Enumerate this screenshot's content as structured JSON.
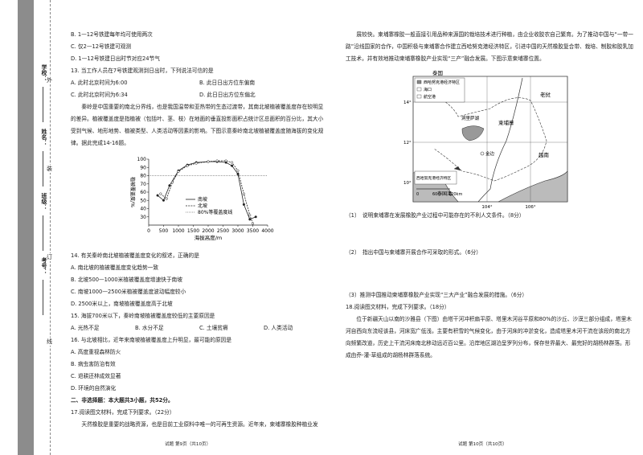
{
  "binding": {
    "fields": [
      "学校：",
      "姓名：",
      "班级：",
      "考号："
    ],
    "marks": [
      "外",
      "装",
      "订",
      "线"
    ]
  },
  "left_page": {
    "before_chart": [
      {
        "text": "B. 1—12号铁建每年均可使用两次"
      },
      {
        "text": "C. 仅2—12号铁建可观测"
      },
      {
        "text": "D. 1—12号铁建日出时节对应24节气"
      },
      {
        "text": "13. 当工作人员在7号铁建观测到日出时，下列说法可信的是"
      },
      {
        "options": [
          "A. 此时北京时间为6:00",
          "B. 此日日出方位东偏南"
        ]
      },
      {
        "options": [
          "C. 此时北京时间为6:34",
          "D. 此日日出方位东偏北"
        ]
      },
      {
        "para": "秦岭是中国重要的南北分界线，也是我国温带和亚热带的生态过渡带，其南北坡植被覆盖度存在较明显的差异。植被覆盖度是指植被（包括叶、茎、枝）在地面的垂直投影面积占统计区总面积的百分比，其大小受到气候、地形地势、植被类型、人类活动等因素的影响。下图示意秦岭南北坡植被覆盖度随海拔的变化规律。据此完成14-16题。"
      }
    ],
    "chart": {
      "type": "line",
      "x_label": "海拔高度/m",
      "y_label": "植被覆盖度/%",
      "xlim": [
        0,
        4000
      ],
      "xticks": [
        0,
        500,
        1000,
        1500,
        2000,
        2500,
        3000,
        3500,
        4000
      ],
      "ylim": [
        20,
        100
      ],
      "yticks": [
        30,
        40,
        50,
        60,
        70,
        80,
        90,
        100
      ],
      "series": [
        {
          "name": "南坡",
          "color": "#222",
          "style": "solid",
          "x": [
            300,
            500,
            700,
            1000,
            1300,
            1600,
            2000,
            2300,
            2600,
            2800,
            3000,
            3200,
            3400,
            3600
          ],
          "values": [
            56,
            50,
            68,
            86,
            93,
            96,
            97,
            97,
            96,
            92,
            82,
            45,
            27,
            30
          ]
        },
        {
          "name": "北坡",
          "color": "#222",
          "style": "dashed",
          "x": [
            400,
            600,
            800,
            1000,
            1300,
            1600,
            2000,
            2300,
            2600,
            2800,
            3000,
            3200,
            3400,
            3500
          ],
          "values": [
            58,
            52,
            72,
            85,
            92,
            95,
            97,
            98,
            98,
            96,
            86,
            58,
            32,
            22
          ]
        }
      ],
      "reference_line": {
        "name": "80%等覆盖度线",
        "value": 80
      }
    },
    "after_chart": [
      {
        "text": "14. 有关秦岭南北坡植被覆盖度变化的叙述，正确的是"
      },
      {
        "text": "A. 南北坡的植被覆盖度变化趋势一致"
      },
      {
        "text": "B. 北坡500—1000米植被覆盖度增速快于南坡"
      },
      {
        "text": "C. 南坡1000—2500米植被覆盖度波动幅度较小"
      },
      {
        "text": "D. 2500米以上，南坡植被覆盖度高于北坡"
      },
      {
        "text": "15. 海拔700米以下，秦岭南坡植被覆盖度较低的主要原因是"
      },
      {
        "options": [
          "A. 光热不足",
          "B. 水分不足",
          "C. 土壤贫瘠",
          "D. 人类活动"
        ]
      },
      {
        "text": "16. 与北坡相比，近年来南坡植被覆盖度上升明显，最可能的原因是"
      },
      {
        "text": "A. 高度重视森林防火"
      },
      {
        "text": "B. 病虫害防治有效"
      },
      {
        "text": "C. 退耕还林成效显著"
      },
      {
        "text": "D. 环境的自然演化"
      },
      {
        "heading": "二、非选择题：本大题共3小题，共52分。"
      },
      {
        "text": "17.阅读图文材料，完成下列要求。（22分）"
      },
      {
        "para": "天然橡胶是重要的战略资源，也是目前工业原料中唯一的可再生资源。近年来，柬埔寨橡胶种植业发"
      }
    ],
    "footer": "试题 第9页（共10页）"
  },
  "right_page": {
    "before_map": [
      {
        "para": "展较快。柬埔寨橡胶一般直接引用品种来源国的栽培技术进行种植，由企业收胶农自己繁育。为了推动中国与“一带一路”沿线国家的合作，中国积极与柬埔寨合作建立西哈努克港经济特区，引进中国的天然橡胶复合带、栽培、制胶和胶乳加工技术，并有效地推动柬埔寨橡胶产业实现“三产”融合发展。下图示意柬埔寨位置。"
      }
    ],
    "map": {
      "countries": [
        "泰国",
        "柬埔寨",
        "老挝",
        "越南"
      ],
      "lake": "洞里萨湖",
      "capital": "金边",
      "sea": "泰国湾",
      "zone": "西哈努克港经济特区",
      "legend": [
        "西哈努克港经济特区",
        "海口",
        "航空港"
      ],
      "lat_labels": [
        "14°",
        "12°",
        "10°"
      ],
      "lon_labels": [
        "104°",
        "106°"
      ],
      "scale": [
        "0",
        "60",
        "120km"
      ]
    },
    "after_map": [
      {
        "q": "（1）　说明柬埔寨在发展橡胶产业过程中可能存在的不利人文条件。（8分）",
        "gap": "g1"
      },
      {
        "q": "（2）　指出中国与柬埔寨开展合作可采取的形式。（6分）",
        "gap": "g2"
      },
      {
        "q": "（3）推测中国推动柬埔寨橡胶产业实现“三大产业”融合发展的措施。（6分）",
        "gap": "g0"
      },
      {
        "text": "18.阅读图文材料，完成下列要求。（18分）"
      },
      {
        "para": "位于新疆天山以南的沙雅县（下图）由塔干河冲积扇平原、塔里木河谷平原和80%的沙丘、沙漠三部分组成，塔里木河自西向东流经该县，河床宽广低浅，主要有积雪的气候变化，由于河床的冲淤变化，造成塔里木河干流在该段的南北方向频繁改道，历史上干流河床南北移动远近百公里。沿岸地区湖泊呈罗列分布，保存世界最大、最完好的胡杨林群落。形成由乔-灌-草组成的胡杨林群落系统。"
      }
    ],
    "footer": "试题 第10页（共10页）"
  }
}
